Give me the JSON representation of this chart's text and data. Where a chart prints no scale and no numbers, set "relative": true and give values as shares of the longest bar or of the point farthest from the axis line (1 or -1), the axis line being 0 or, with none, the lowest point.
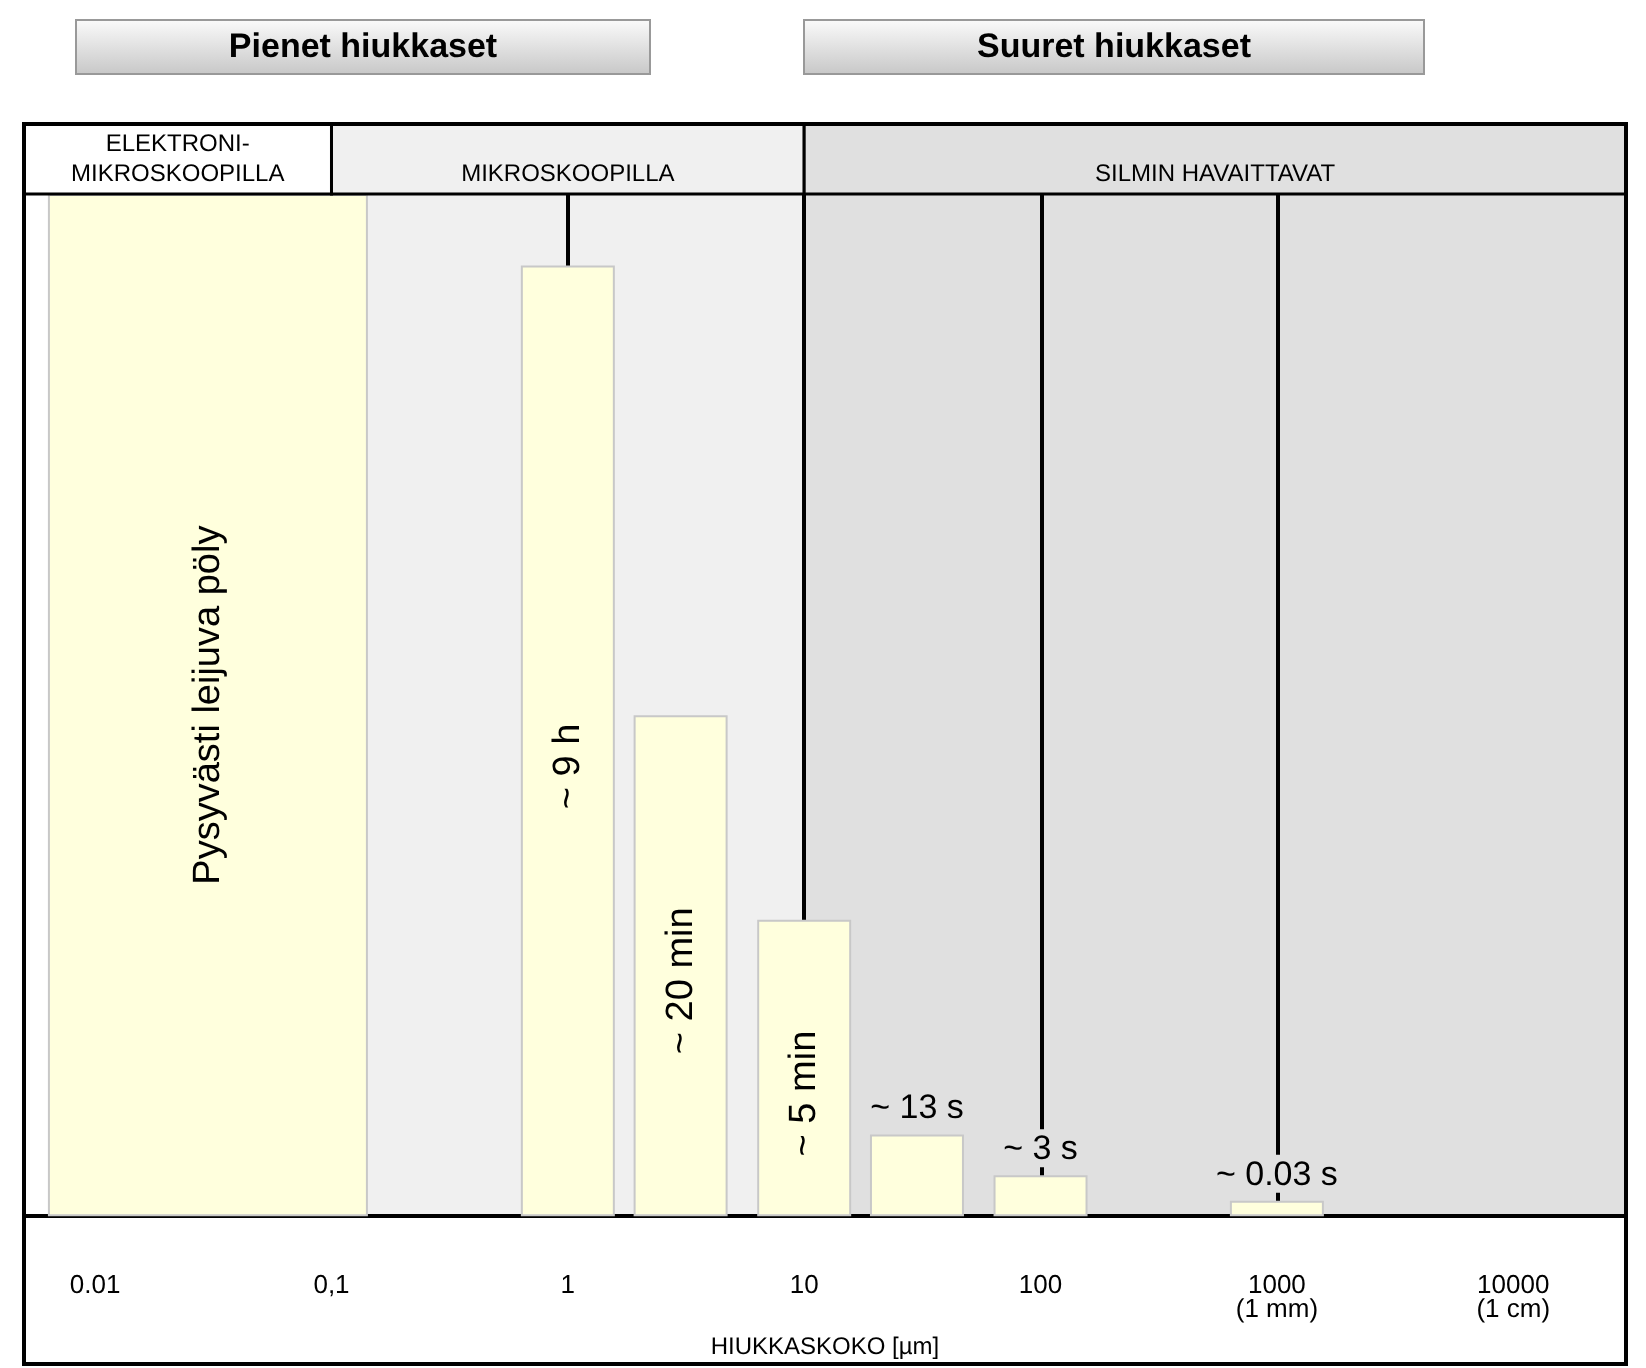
{
  "chart_data": {
    "type": "bar",
    "relative": true,
    "xlabel": "HIUKKASKOKO [µm]",
    "log": "x",
    "xlim": [
      0.005,
      30000
    ],
    "xticks": [
      {
        "value": 0.01,
        "label": "0.01"
      },
      {
        "value": 0.1,
        "label": "0,1"
      },
      {
        "value": 1,
        "label": "1"
      },
      {
        "value": 10,
        "label": "10"
      },
      {
        "value": 100,
        "label": "100"
      },
      1000,
      10000
    ],
    "series": [
      {
        "color": "#ffffdd",
        "x": [
          0.03
        ],
        "values": [
          1
        ]
      },
      {
        "color": "#ffffdd",
        "x": [
          1,
          3,
          10,
          30,
          100,
          1000
        ],
        "values": [
          0.93,
          0.49,
          0.29,
          0.08,
          0.04,
          0.015
        ]
      }
    ],
    "bands": [
      {
        "axis": "x",
        "from": 0.1,
        "to": 10,
        "label": "MIKROSKOOPILLA",
        "color": "#f0f0f0"
      },
      {
        "axis": "x",
        "from": 10,
        "to": 30000,
        "label": "SILMIN HAVAITTAVAT",
        "color": "#e0e0e0"
      }
    ],
    "ref_lines": [
      {
        "axis": "x",
        "value": 1,
        "color": "#000000"
      },
      {
        "axis": "x",
        "value": 10,
        "color": "#000000"
      },
      {
        "axis": "x",
        "value": 100,
        "color": "#000000"
      },
      {
        "axis": "x",
        "value": 1000,
        "color": "#000000"
      }
    ],
    "annotations": [
      "Pienet hiukkaset",
      "Suuret hiukkaset",
      "(1 mm)",
      "(1 cm)",
      "Pysyvästi leijuva pöly",
      "~ 20 min",
      "ELEKTRONI-\nMIKROSKOOPILLA",
      {
        "text": "~ 9 h",
        "x": 1,
        "y": 0.44
      },
      {
        "text": "~ 5 min",
        "x": 10,
        "y": 0.12
      },
      {
        "text": "~ 13 s",
        "x": 30,
        "y": 0.08
      },
      {
        "text": "~ 3 s",
        "x": 100,
        "y": 0.04
      },
      {
        "text": "~ 0.03 s",
        "x": 1000,
        "y": 0.015
      }
    ]
  }
}
